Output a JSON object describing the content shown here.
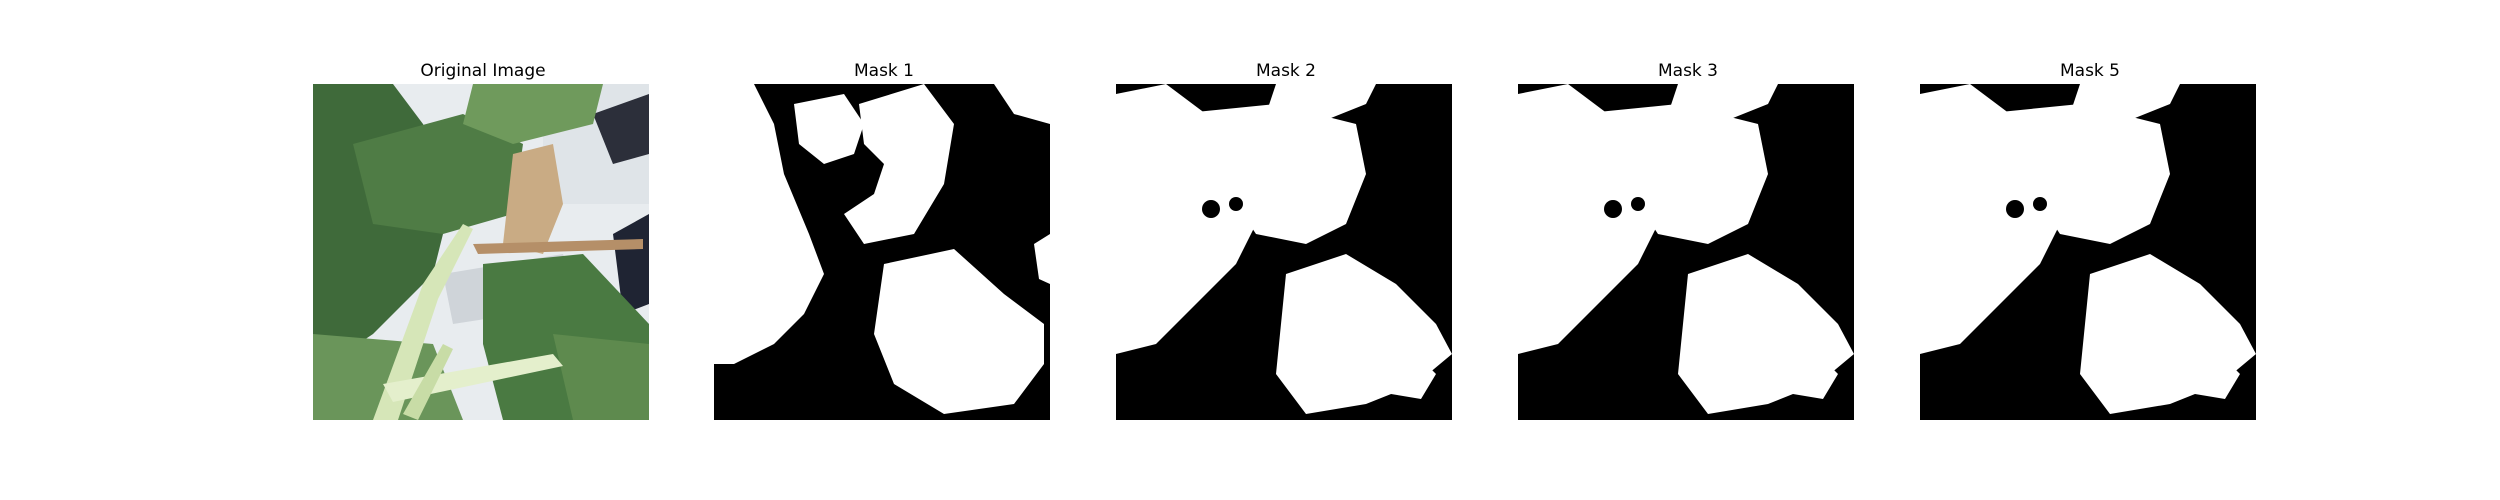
{
  "figure": {
    "panels": [
      {
        "title": "Original Image",
        "kind": "photo",
        "subject": "leafy-plant-photo"
      },
      {
        "title": "Mask 1",
        "kind": "binary-mask"
      },
      {
        "title": "Mask 2",
        "kind": "binary-mask"
      },
      {
        "title": "Mask 3",
        "kind": "binary-mask"
      },
      {
        "title": "Mask 5",
        "kind": "binary-mask"
      }
    ],
    "colors": {
      "mask_background": "#000000",
      "mask_foreground": "#ffffff",
      "leaf_dark": "#3f6a3a",
      "leaf_light": "#7fa86a",
      "stem": "#d6e6b8",
      "dry_leaf": "#c9ab84",
      "backdrop": "#e8ecef"
    }
  }
}
